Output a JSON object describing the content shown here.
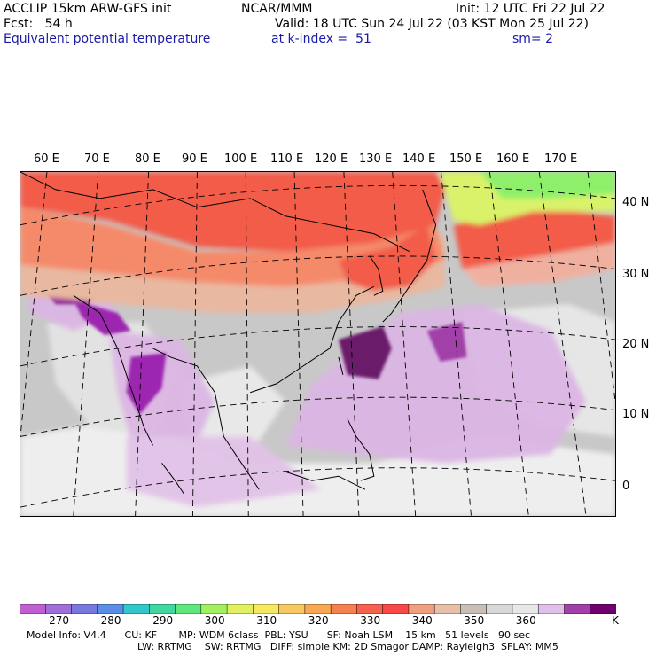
{
  "header": {
    "line1_left": "ACCLIP 15km ARW-GFS init",
    "line1_center": "NCAR/MMM",
    "line1_right": "Init: 12 UTC Fri 22 Jul 22",
    "line2_left": "Fcst:   54 h",
    "line2_right": "Valid: 18 UTC Sun 24 Jul 22 (03 KST Mon 25 Jul 22)",
    "line3_left": "Equivalent potential temperature",
    "line3_center": "at k-index =  51",
    "line3_right": "sm= 2"
  },
  "map": {
    "lon_labels": [
      "60 E",
      "70 E",
      "80 E",
      "90 E",
      "100 E",
      "110 E",
      "120 E",
      "130 E",
      "140 E",
      "150 E",
      "160 E",
      "170 E"
    ],
    "lat_labels": [
      "40 N",
      "30 N",
      "20 N",
      "10 N",
      "0"
    ],
    "colors": {
      "ocean_gray": "#c8c8c8",
      "land_light": "#f0f0f0",
      "purple_light": "#e1bee7",
      "purple_mid": "#9c27b0",
      "purple_dark": "#6a1b6a",
      "red": "#f25c4a",
      "orange": "#f48a6a",
      "tan": "#e8b8a0",
      "yellow_green": "#d9f26a",
      "green": "#8ef06a"
    }
  },
  "colorbar": {
    "unit": "K",
    "tick_labels": [
      "270",
      "280",
      "290",
      "300",
      "310",
      "320",
      "330",
      "340",
      "350",
      "360"
    ],
    "colors": [
      "#c060d0",
      "#a070d8",
      "#7878e0",
      "#5a8ee8",
      "#30c8c8",
      "#40d8a0",
      "#60e880",
      "#a0f060",
      "#e0f060",
      "#f8e860",
      "#f8c860",
      "#f8a850",
      "#f88050",
      "#f86050",
      "#f84848",
      "#f0a080",
      "#e8c0a8",
      "#c8c0b8",
      "#d8d8d8",
      "#e8e8e8",
      "#e0c0e8",
      "#a040a8",
      "#700070"
    ]
  },
  "model_info": {
    "line1": "Model Info: V4.4      CU: KF       MP: WDM 6class  PBL: YSU      SF: Noah LSM    15 km   51 levels   90 sec",
    "line2": "LW: RRTMG    SW: RRTMG   DIFF: simple KM: 2D Smagor DAMP: Rayleigh3  SFLAY: MM5"
  }
}
